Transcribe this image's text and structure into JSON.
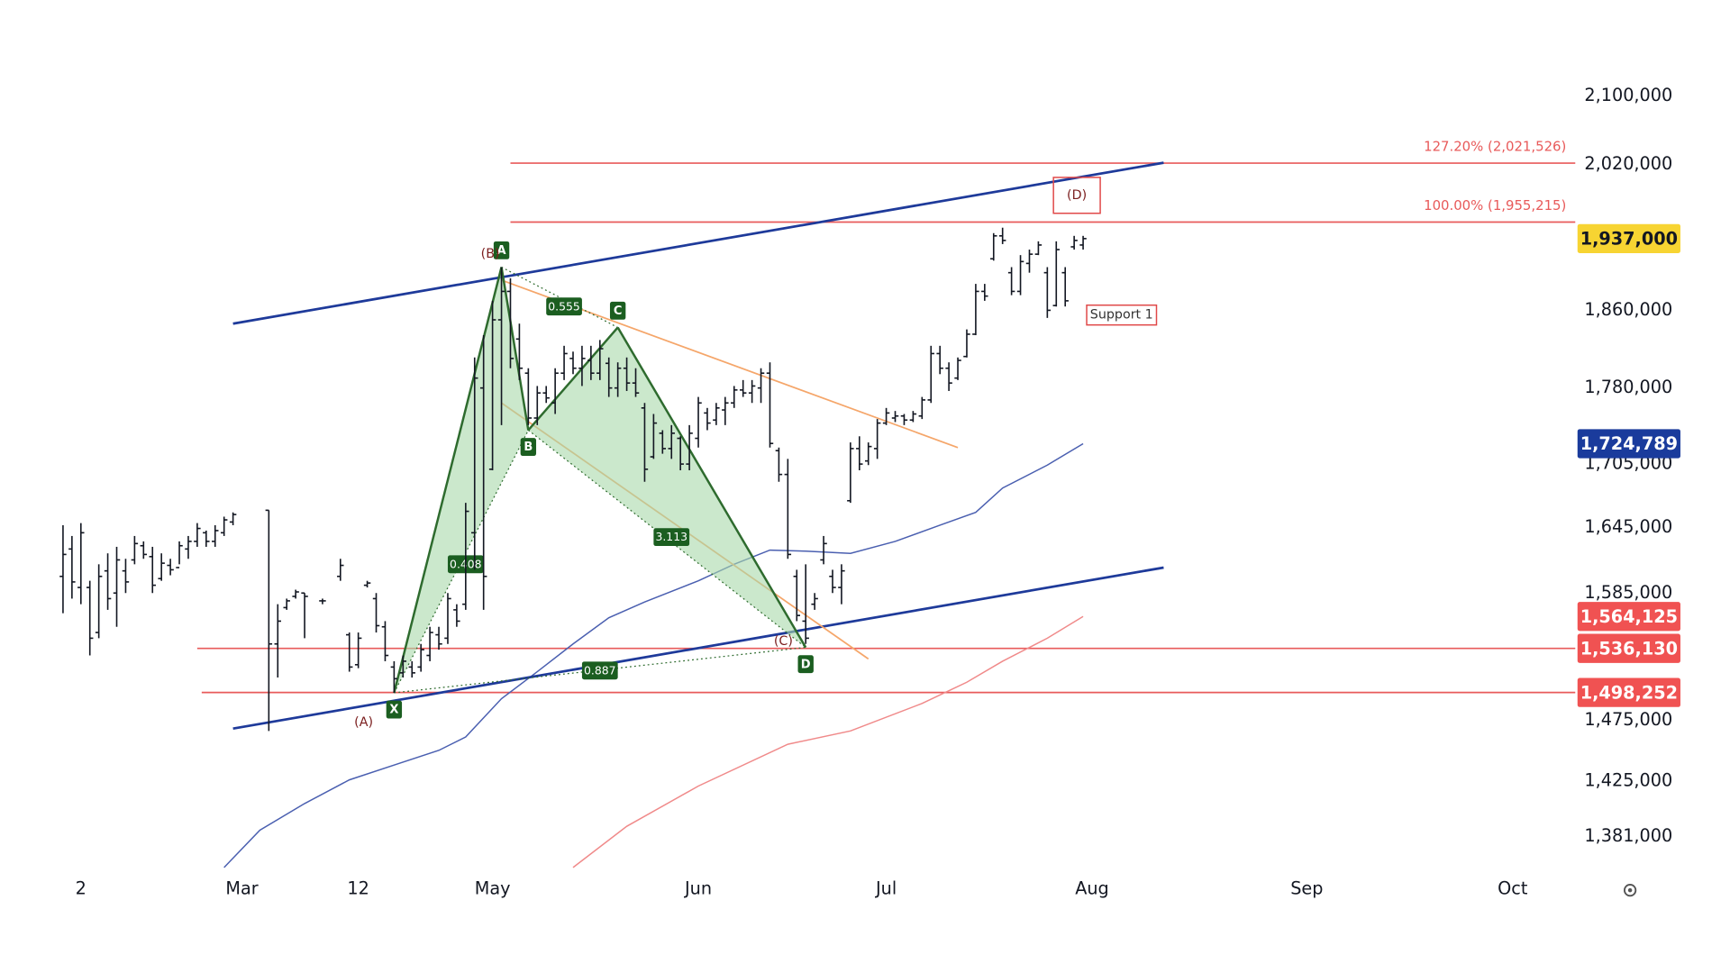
{
  "chart_data": {
    "type": "ohlc",
    "color": "#131722",
    "log_scale": true,
    "grid": false,
    "xlim": [
      0,
      176
    ],
    "xticks": [
      {
        "value": 9,
        "label": "2"
      },
      {
        "value": 27,
        "label": "Mar"
      },
      {
        "value": 40,
        "label": "12"
      },
      {
        "value": 55,
        "label": "May"
      },
      {
        "value": 78,
        "label": "Jun"
      },
      {
        "value": 99,
        "label": "Jul"
      },
      {
        "value": 122,
        "label": "Aug"
      },
      {
        "value": 146,
        "label": "Sep"
      },
      {
        "value": 169,
        "label": "Oct"
      }
    ],
    "ylim": [
      1355000,
      2217000
    ],
    "yticks": [
      {
        "value": 2100000,
        "label": "2,100,000"
      },
      {
        "value": 2020000,
        "label": "2,020,000"
      },
      {
        "value": 1860000,
        "label": "1,860,000"
      },
      {
        "value": 1780000,
        "label": "1,780,000"
      },
      {
        "value": 1705000,
        "label": "1,705,000"
      },
      {
        "value": 1645000,
        "label": "1,645,000"
      },
      {
        "value": 1585000,
        "label": "1,585,000"
      },
      {
        "value": 1475000,
        "label": "1,475,000"
      },
      {
        "value": 1425000,
        "label": "1,425,000"
      },
      {
        "value": 1381000,
        "label": "1,381,000"
      }
    ],
    "x": [
      7,
      8,
      9,
      10,
      11,
      12,
      13,
      14,
      15,
      16,
      17,
      18,
      19,
      20,
      21,
      22,
      23,
      24,
      25,
      26,
      30,
      31,
      32,
      33,
      34,
      36,
      38,
      39,
      40,
      41,
      42,
      43,
      44,
      45,
      46,
      47,
      48,
      49,
      50,
      51,
      52,
      53,
      54,
      55,
      56,
      57,
      58,
      59,
      60,
      61,
      62,
      63,
      64,
      65,
      66,
      67,
      68,
      69,
      70,
      71,
      72,
      73,
      74,
      75,
      76,
      77,
      78,
      79,
      80,
      81,
      82,
      83,
      84,
      85,
      86,
      87,
      88,
      89,
      90,
      91,
      92,
      93,
      94,
      95,
      96,
      97,
      98,
      99,
      100,
      101,
      102,
      103,
      104,
      105,
      106,
      107,
      108,
      109,
      110,
      111,
      112,
      113,
      114,
      115,
      116,
      117,
      118,
      119,
      120,
      121
    ],
    "open": [
      1600000,
      1625000,
      1590000,
      1590000,
      1550000,
      1605000,
      1585000,
      1605000,
      1615000,
      1628000,
      1618000,
      1598000,
      1610000,
      1608000,
      1625000,
      1632000,
      1640000,
      1632000,
      1640000,
      1650000,
      1661000,
      1540000,
      1572000,
      1582000,
      1585000,
      1578000,
      1600000,
      1548000,
      1522000,
      1592000,
      1580000,
      1555000,
      1520000,
      1515000,
      1520000,
      1520000,
      1530000,
      1548000,
      1545000,
      1570000,
      1575000,
      1640000,
      1780000,
      1700000,
      1850000,
      1880000,
      1830000,
      1795000,
      1750000,
      1775000,
      1765000,
      1795000,
      1810000,
      1800000,
      1808000,
      1795000,
      1805000,
      1780000,
      1800000,
      1785000,
      1760000,
      1712000,
      1735000,
      1720000,
      1730000,
      1705000,
      1730000,
      1755000,
      1748000,
      1758000,
      1765000,
      1778000,
      1775000,
      1780000,
      1795000,
      1718000,
      1695000,
      1600000,
      1560000,
      1575000,
      1615000,
      1600000,
      1590000,
      1670000,
      1720000,
      1708000,
      1720000,
      1745000,
      1750000,
      1752000,
      1748000,
      1752000,
      1768000,
      1815000,
      1800000,
      1790000,
      1812000,
      1835000,
      1880000,
      1915000,
      1940000,
      1900000,
      1880000,
      1910000,
      1920000,
      1900000,
      1865000,
      1900000,
      1928000,
      1930000
    ],
    "high": [
      1647000,
      1637000,
      1649000,
      1596000,
      1611000,
      1621000,
      1627000,
      1616000,
      1637000,
      1632000,
      1627000,
      1621000,
      1616000,
      1632000,
      1637000,
      1649000,
      1642000,
      1647000,
      1655000,
      1659000,
      1661000,
      1575000,
      1580000,
      1588000,
      1585000,
      1580000,
      1616000,
      1550000,
      1550000,
      1596000,
      1585000,
      1560000,
      1525000,
      1530000,
      1525000,
      1540000,
      1555000,
      1555000,
      1585000,
      1575000,
      1668000,
      1811000,
      1834000,
      1870000,
      1906000,
      1894000,
      1846000,
      1800000,
      1782000,
      1782000,
      1800000,
      1823000,
      1817000,
      1823000,
      1823000,
      1829000,
      1811000,
      1806000,
      1811000,
      1800000,
      1765000,
      1754000,
      1738000,
      1743000,
      1732000,
      1743000,
      1771000,
      1760000,
      1765000,
      1771000,
      1782000,
      1788000,
      1788000,
      1800000,
      1806000,
      1721000,
      1710000,
      1606000,
      1611000,
      1585000,
      1637000,
      1606000,
      1611000,
      1726000,
      1732000,
      1726000,
      1749000,
      1760000,
      1757000,
      1754000,
      1757000,
      1771000,
      1823000,
      1823000,
      1806000,
      1811000,
      1840000,
      1888000,
      1888000,
      1943000,
      1949000,
      1906000,
      1919000,
      1925000,
      1934000,
      1906000,
      1934000,
      1906000,
      1940000,
      1940000
    ],
    "low": [
      1567000,
      1580000,
      1575000,
      1530000,
      1545000,
      1570000,
      1555000,
      1585000,
      1611000,
      1616000,
      1585000,
      1596000,
      1601000,
      1611000,
      1616000,
      1627000,
      1627000,
      1627000,
      1637000,
      1647000,
      1466000,
      1511000,
      1570000,
      1580000,
      1545000,
      1575000,
      1596000,
      1516000,
      1519000,
      1590000,
      1550000,
      1525000,
      1498000,
      1511000,
      1511000,
      1516000,
      1525000,
      1535000,
      1540000,
      1555000,
      1570000,
      1606000,
      1570000,
      1699000,
      1743000,
      1800000,
      1788000,
      1743000,
      1743000,
      1765000,
      1754000,
      1788000,
      1794000,
      1782000,
      1788000,
      1788000,
      1771000,
      1771000,
      1777000,
      1771000,
      1688000,
      1710000,
      1715000,
      1710000,
      1699000,
      1699000,
      1721000,
      1738000,
      1743000,
      1743000,
      1760000,
      1771000,
      1765000,
      1765000,
      1721000,
      1688000,
      1616000,
      1560000,
      1540000,
      1570000,
      1611000,
      1585000,
      1575000,
      1668000,
      1699000,
      1704000,
      1710000,
      1743000,
      1746000,
      1743000,
      1746000,
      1749000,
      1765000,
      1794000,
      1777000,
      1788000,
      1811000,
      1834000,
      1870000,
      1913000,
      1931000,
      1876000,
      1876000,
      1900000,
      1919000,
      1852000,
      1864000,
      1864000,
      1925000,
      1925000
    ],
    "close": [
      1620000,
      1595000,
      1640000,
      1545000,
      1600000,
      1580000,
      1615000,
      1595000,
      1630000,
      1620000,
      1592000,
      1612000,
      1606000,
      1628000,
      1632000,
      1644000,
      1632000,
      1642000,
      1652000,
      1657000,
      1540000,
      1560000,
      1578000,
      1586000,
      1582000,
      1578000,
      1610000,
      1520000,
      1545000,
      1594000,
      1556000,
      1530000,
      1510000,
      1525000,
      1515000,
      1535000,
      1550000,
      1540000,
      1580000,
      1560000,
      1660000,
      1790000,
      1600000,
      1850000,
      1880000,
      1810000,
      1800000,
      1750000,
      1775000,
      1770000,
      1795000,
      1815000,
      1800000,
      1810000,
      1795000,
      1820000,
      1780000,
      1800000,
      1785000,
      1775000,
      1700000,
      1745000,
      1720000,
      1735000,
      1705000,
      1735000,
      1765000,
      1745000,
      1760000,
      1765000,
      1778000,
      1775000,
      1782000,
      1795000,
      1725000,
      1695000,
      1620000,
      1565000,
      1545000,
      1580000,
      1630000,
      1590000,
      1605000,
      1720000,
      1705000,
      1722000,
      1745000,
      1755000,
      1752000,
      1748000,
      1754000,
      1768000,
      1815000,
      1800000,
      1785000,
      1808000,
      1835000,
      1880000,
      1875000,
      1940000,
      1935000,
      1880000,
      1912000,
      1920000,
      1930000,
      1860000,
      1925000,
      1870000,
      1935000,
      1937000
    ],
    "moving_averages": [
      {
        "color": "#4a5fb0",
        "x": [
          25,
          29,
          34,
          39,
          44,
          49,
          52,
          56,
          60,
          64,
          68,
          72,
          78,
          82,
          86,
          90,
          95,
          100,
          105,
          109,
          112,
          117,
          121
        ],
        "values": [
          1357000,
          1386000,
          1407000,
          1426000,
          1438000,
          1450000,
          1461000,
          1493000,
          1516000,
          1540000,
          1563000,
          1577000,
          1596000,
          1611000,
          1624000,
          1623000,
          1621000,
          1632000,
          1647000,
          1659000,
          1682000,
          1704000,
          1724789
        ]
      },
      {
        "color": "#f08a8a",
        "x": [
          64,
          70,
          78,
          88,
          95,
          103,
          108,
          112,
          117,
          121
        ],
        "values": [
          1357000,
          1389000,
          1421000,
          1455000,
          1466000,
          1489000,
          1507000,
          1525000,
          1545000,
          1564125
        ]
      }
    ],
    "levels": [
      {
        "value": 2021526,
        "label": "127.20% (2,021,526)",
        "x_start": 57,
        "color": "#e85a5a"
      },
      {
        "value": 1955215,
        "label": "100.00% (1,955,215)",
        "x_start": 57,
        "color": "#e85a5a"
      },
      {
        "value": 1536130,
        "x_start": 22,
        "color": "#e85a5a"
      },
      {
        "value": 1498252,
        "x_start": 22.5,
        "color": "#e85a5a"
      }
    ],
    "trend_lines": [
      {
        "color": "#1e3a9a",
        "x": [
          26,
          130
        ],
        "y": [
          1846000,
          2022000
        ]
      },
      {
        "color": "#1e3a9a",
        "x": [
          26,
          130
        ],
        "y": [
          1468000,
          1608000
        ]
      },
      {
        "color": "#f5a66a",
        "x": [
          56,
          107
        ],
        "y": [
          1892000,
          1721000
        ]
      },
      {
        "color": "#f5a66a",
        "x": [
          56,
          97
        ],
        "y": [
          1765000,
          1527000
        ]
      }
    ],
    "pattern": {
      "color": "#2e6b2e",
      "fill": "#a8d8aa",
      "points": [
        {
          "label": "X",
          "x": 44,
          "value": 1498000
        },
        {
          "label": "A",
          "x": 56,
          "value": 1906000
        },
        {
          "label": "B",
          "x": 59,
          "value": 1738000
        },
        {
          "label": "C",
          "x": 69,
          "value": 1842000
        },
        {
          "label": "D",
          "x": 90,
          "value": 1537000
        }
      ],
      "ratios": [
        {
          "label": "0.408",
          "x": 52,
          "y": 1611000
        },
        {
          "label": "0.555",
          "x": 63,
          "y": 1864000
        },
        {
          "label": "3.113",
          "x": 75,
          "y": 1636000
        },
        {
          "label": "0.887",
          "x": 67,
          "y": 1517000
        }
      ]
    },
    "annotations": [
      {
        "text": "(A)",
        "x": 40.6,
        "y": 1473000,
        "color": "#7b1f1f"
      },
      {
        "text": "(B)",
        "x": 54.75,
        "y": 1920000,
        "color": "#7b1f1f"
      },
      {
        "text": "(C)",
        "x": 87.5,
        "y": 1542000,
        "color": "#7b1f1f"
      },
      {
        "text": "(D)",
        "x": 120.3,
        "y": 1985000,
        "color": "#7b1f1f",
        "boxed": true
      },
      {
        "text": "Support 1",
        "x": 125.3,
        "y": 1855000,
        "color": "#333333",
        "boxed": true
      }
    ],
    "price_badges": [
      {
        "value": 1937000,
        "label": "1,937,000",
        "color": "#f7d432",
        "text_color": "#131722"
      },
      {
        "value": 1724789,
        "label": "1,724,789",
        "color": "#1a3b9c",
        "text_color": "#ffffff"
      },
      {
        "value": 1564125,
        "label": "1,564,125",
        "color": "#f05252",
        "text_color": "#ffffff"
      },
      {
        "value": 1536130,
        "label": "1,536,130",
        "color": "#f05252",
        "text_color": "#ffffff"
      },
      {
        "value": 1498252,
        "label": "1,498,252",
        "color": "#f05252",
        "text_color": "#ffffff"
      }
    ]
  }
}
